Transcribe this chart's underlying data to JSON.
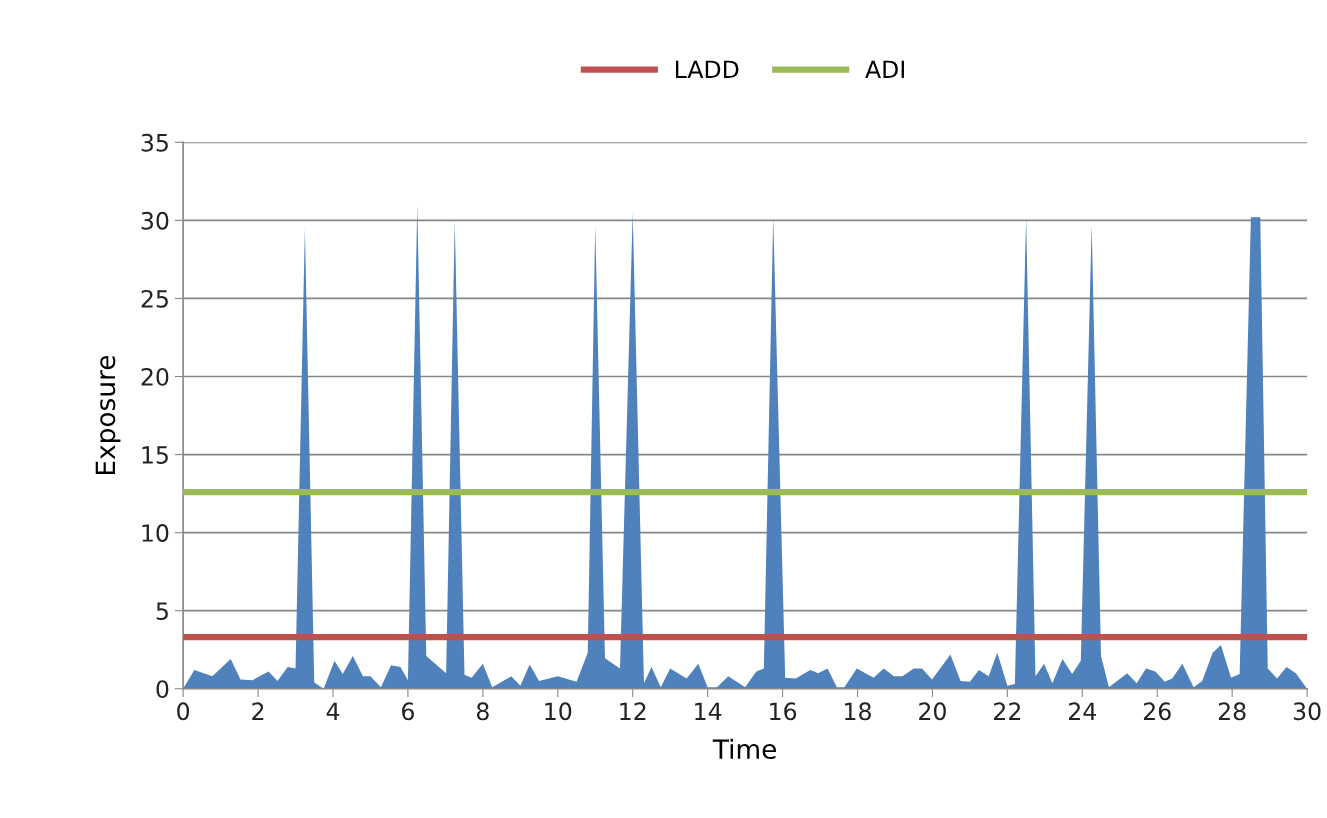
{
  "chart_data": {
    "type": "area",
    "xlabel": "Time",
    "ylabel": "Exposure",
    "xlim": [
      0,
      30
    ],
    "xticks": [
      0,
      2,
      4,
      6,
      8,
      10,
      12,
      14,
      16,
      18,
      20,
      22,
      24,
      26,
      28,
      30
    ],
    "ylim": [
      0,
      35
    ],
    "yticks": [
      0,
      5,
      10,
      15,
      20,
      25,
      30,
      35
    ],
    "grid": "y",
    "legend": "top",
    "series": [
      {
        "color": "#4f81bd",
        "x": [
          0,
          0.3,
          0.78,
          1.27,
          1.53,
          1.85,
          2.28,
          2.52,
          2.79,
          3.0,
          3.25,
          3.5,
          3.75,
          4.04,
          4.26,
          4.53,
          4.8,
          5.0,
          5.28,
          5.55,
          5.8,
          6.0,
          6.25,
          6.49,
          7.02,
          7.25,
          7.51,
          7.7,
          8.0,
          8.25,
          8.76,
          9.0,
          9.25,
          9.5,
          10.0,
          10.5,
          10.8,
          11.0,
          11.26,
          11.66,
          12.0,
          12.3,
          12.5,
          12.75,
          13.0,
          13.44,
          13.75,
          14.0,
          14.25,
          14.55,
          15.0,
          15.3,
          15.5,
          15.75,
          16.07,
          16.35,
          16.74,
          16.95,
          17.2,
          17.45,
          17.65,
          17.98,
          18.43,
          18.7,
          18.97,
          19.2,
          19.5,
          19.72,
          19.99,
          20.48,
          20.75,
          21.0,
          21.24,
          21.5,
          21.73,
          22.0,
          22.2,
          22.5,
          22.75,
          22.98,
          23.2,
          23.47,
          23.73,
          23.96,
          24.25,
          24.5,
          24.71,
          25.2,
          25.45,
          25.7,
          25.95,
          26.2,
          26.4,
          26.67,
          26.97,
          27.2,
          27.48,
          27.7,
          27.97,
          28.2,
          28.5,
          28.75,
          28.95,
          29.2,
          29.45,
          29.7,
          30
        ],
        "values": [
          0,
          1.2,
          0.8,
          1.9,
          0.6,
          0.55,
          1.1,
          0.5,
          1.4,
          1.3,
          29.5,
          0.4,
          0,
          1.8,
          0.95,
          2.1,
          0.8,
          0.8,
          0.1,
          1.5,
          1.4,
          0.55,
          31,
          2.1,
          1.0,
          30,
          0.9,
          0.7,
          1.6,
          0.1,
          0.8,
          0.2,
          1.55,
          0.5,
          0.8,
          0.45,
          2.3,
          29.7,
          1.95,
          1.3,
          30.5,
          0.35,
          1.4,
          0.1,
          1.3,
          0.65,
          1.6,
          0.1,
          0.1,
          0.8,
          0.1,
          1.1,
          1.3,
          30.2,
          0.7,
          0.65,
          1.2,
          1.0,
          1.3,
          0.1,
          0.1,
          1.3,
          0.7,
          1.3,
          0.8,
          0.8,
          1.3,
          1.3,
          0.6,
          2.2,
          0.5,
          0.45,
          1.2,
          0.8,
          2.3,
          0.2,
          0.3,
          30.2,
          0.8,
          1.6,
          0.35,
          1.9,
          0.95,
          1.8,
          29.7,
          2.1,
          0.1,
          1.0,
          0.35,
          1.3,
          1.1,
          0.45,
          0.65,
          1.6,
          0.1,
          0.5,
          2.3,
          2.8,
          0.7,
          0.95,
          30.2,
          30.2,
          1.3,
          0.65,
          1.4,
          1.0,
          0
        ]
      },
      {
        "type": "line",
        "name": "LADD",
        "color": "#c0504d",
        "x": [
          0,
          30
        ],
        "values": [
          3.3,
          3.3
        ]
      },
      {
        "type": "line",
        "name": "ADI",
        "color": "#9bbb59",
        "x": [
          0,
          30
        ],
        "values": [
          12.6,
          12.6
        ]
      }
    ]
  }
}
